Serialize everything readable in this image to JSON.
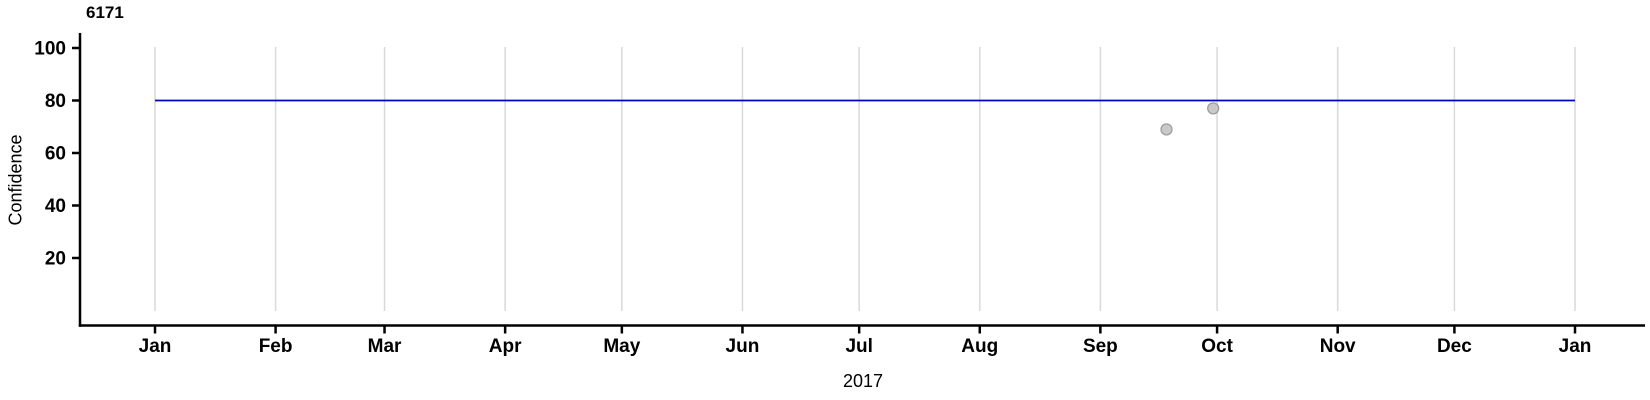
{
  "chart_data": {
    "type": "scatter",
    "title": "6171",
    "xlabel": "2017",
    "ylabel": "Confidence",
    "x_axis": {
      "scale": "date",
      "tick_labels": [
        "Jan",
        "Feb",
        "Mar",
        "Apr",
        "May",
        "Jun",
        "Jul",
        "Aug",
        "Sep",
        "Oct",
        "Nov",
        "Dec",
        "Jan"
      ],
      "tick_day_of_year": [
        0,
        31,
        59,
        90,
        120,
        151,
        181,
        212,
        243,
        273,
        304,
        334,
        365
      ],
      "domain_days": [
        0,
        365
      ]
    },
    "y_axis": {
      "tick_values": [
        100,
        80,
        60,
        40,
        20
      ],
      "range": [
        0,
        100
      ]
    },
    "grid": {
      "vertical": true,
      "horizontal": false,
      "color": "#D9D9D9"
    },
    "reference_line": {
      "value": 80,
      "from_day": 0,
      "to_day": 365,
      "color": "#0000C0"
    },
    "series": [
      {
        "name": "Confidence",
        "points": [
          {
            "day_of_year": 260,
            "x_approx": "2017-09-17",
            "value": 69
          },
          {
            "day_of_year": 272,
            "x_approx": "2017-09-29",
            "value": 77
          }
        ],
        "marker": {
          "shape": "circle",
          "fill": "#C9C9C9",
          "stroke": "#9E9E9E",
          "radius_px": 5.5
        }
      }
    ],
    "legend": "none",
    "colors": {
      "axis": "#000000",
      "text": "#000000",
      "background": "#FFFFFF"
    }
  }
}
